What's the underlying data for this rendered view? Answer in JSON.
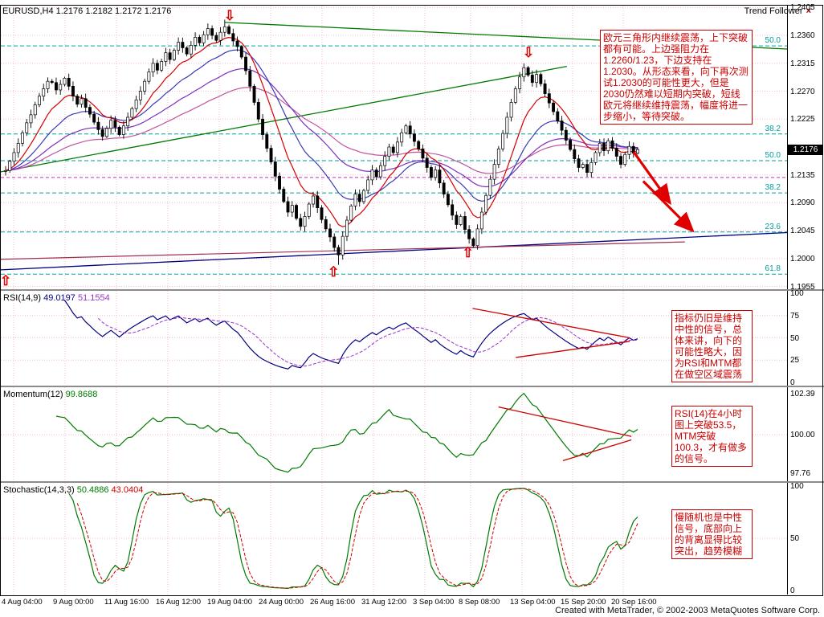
{
  "window": {
    "symbol_label": "EURUSD,H4 1.2176 1.2182 1.2172 1.2176",
    "overlay_title": "Trend Follower",
    "close_icon": "×",
    "footer": "Created with MetaTrader, © 2002-2003 MetaQuotes Software Corp."
  },
  "price_axis": {
    "labels": [
      "1.2405",
      "1.2360",
      "1.2315",
      "1.2270",
      "1.2225",
      "1.2135",
      "1.2090",
      "1.2045",
      "1.2000",
      "1.1955"
    ],
    "current": "1.2176"
  },
  "panels": {
    "rsi": {
      "name": "RSI(14,9)",
      "v1": "49.0197",
      "v2": "51.1554",
      "scale": [
        "100",
        "75",
        "50",
        "25",
        "0"
      ]
    },
    "momentum": {
      "name": "Momentum(12)",
      "v1": "99.8688",
      "scale": [
        "102.39",
        "100.00",
        "97.76"
      ]
    },
    "stochastic": {
      "name": "Stochastic(14,3,3)",
      "v1": "50.4886",
      "v2": "43.0404",
      "scale": [
        "100",
        "50",
        "0"
      ]
    }
  },
  "annotations": {
    "main": "欧元三角形内继续震荡，上下突破都有可能。上边强阻力在1.2260/1.23，下边支持在1.2030。从形态来看，向下再次测试1.2030的可能性更大，但是2030仍然难以短期内突破，短线欧元将继续维持震荡，幅度将进一步缩小，等待突破。",
    "rsi": "指标仍旧是维持中性的信号，总体来讲，向下的可能性略大，因为RSI和MTM都在做空区域震荡",
    "momentum": "RSI(14)在4小时图上突破53.5，MTM突破100.3，才有做多的信号。",
    "stochastic": "慢随机也是中性信号，底部向上的背离显得比较突出，趋势模糊"
  },
  "chart_data": {
    "type": "candlestick",
    "symbol": "EURUSD",
    "timeframe": "H4",
    "price_range": [
      1.1952,
      1.2408
    ],
    "closes": [
      1.2142,
      1.2157,
      1.2171,
      1.2186,
      1.2203,
      1.2219,
      1.2232,
      1.2248,
      1.2262,
      1.2274,
      1.2286,
      1.2284,
      1.2272,
      1.2281,
      1.2291,
      1.2278,
      1.2262,
      1.2249,
      1.2258,
      1.2244,
      1.2233,
      1.222,
      1.2208,
      1.2197,
      1.221,
      1.2223,
      1.2212,
      1.22,
      1.2214,
      1.2228,
      1.2242,
      1.2256,
      1.227,
      1.2286,
      1.2301,
      1.2315,
      1.2304,
      1.2318,
      1.2332,
      1.2321,
      1.2336,
      1.2349,
      1.234,
      1.233,
      1.2344,
      1.2357,
      1.2348,
      1.2361,
      1.2371,
      1.236,
      1.2352,
      1.2365,
      1.2374,
      1.2363,
      1.2351,
      1.2342,
      1.2325,
      1.2303,
      1.2278,
      1.2252,
      1.2225,
      1.22,
      1.2178,
      1.2156,
      1.2133,
      1.2112,
      1.2092,
      1.2075,
      1.2086,
      1.2065,
      1.2052,
      1.2068,
      1.2088,
      1.2101,
      1.2082,
      1.2063,
      1.2048,
      1.2035,
      1.2018,
      1.2006,
      1.2036,
      1.2062,
      1.2085,
      1.2104,
      1.2092,
      1.211,
      1.2127,
      1.2143,
      1.2132,
      1.215,
      1.2165,
      1.218,
      1.2171,
      1.2188,
      1.2203,
      1.2214,
      1.2201,
      1.2189,
      1.2177,
      1.2162,
      1.2147,
      1.2131,
      1.2143,
      1.2122,
      1.2104,
      1.2087,
      1.207,
      1.2055,
      1.2068,
      1.2047,
      1.2032,
      1.2021,
      1.2048,
      1.2075,
      1.2102,
      1.2128,
      1.2152,
      1.2177,
      1.2202,
      1.2228,
      1.2252,
      1.2274,
      1.2293,
      1.2308,
      1.2296,
      1.2284,
      1.2297,
      1.2282,
      1.2266,
      1.2251,
      1.2237,
      1.2222,
      1.2207,
      1.2191,
      1.2176,
      1.2161,
      1.2147,
      1.2152,
      1.2139,
      1.2155,
      1.2171,
      1.2186,
      1.2174,
      1.219,
      1.2178,
      1.2165,
      1.2152,
      1.2168,
      1.2181,
      1.217,
      1.2176
    ],
    "time_labels": [
      "4 Aug 04:00",
      "9 Aug 00:00",
      "11 Aug 16:00",
      "16 Aug 12:00",
      "19 Aug 04:00",
      "24 Aug 00:00",
      "26 Aug 16:00",
      "31 Aug 12:00",
      "3 Sep 04:00",
      "8 Sep 08:00",
      "13 Sep 04:00",
      "15 Sep 20:00",
      "20 Sep 16:00"
    ],
    "overlays": [
      {
        "period": 65,
        "color": "#c2559f"
      },
      {
        "period": 40,
        "color": "#7b2fbe"
      },
      {
        "period": 21,
        "color": "#3a3ab8"
      },
      {
        "period": 10,
        "color": "#d40000"
      }
    ],
    "fib_levels": [
      {
        "label": "50.0",
        "price": 1.2343
      },
      {
        "label": "38.2",
        "price": 1.2201
      },
      {
        "label": "50.0",
        "price": 1.2158
      },
      {
        "label": "38.2",
        "price": 1.2106
      },
      {
        "label": "23.6",
        "price": 1.2043
      },
      {
        "label": "61.8",
        "price": 1.1975
      }
    ],
    "trendlines": [
      {
        "x1": 0.0,
        "p1": 1.214,
        "x2": 0.72,
        "p2": 1.231,
        "color": "#007a00",
        "w": 1.3
      },
      {
        "x1": 0.285,
        "p1": 1.2381,
        "x2": 1.0,
        "p2": 1.2338,
        "color": "#007a00",
        "w": 1.3
      },
      {
        "x1": 0.0,
        "p1": 1.1982,
        "x2": 1.0,
        "p2": 1.2042,
        "color": "#000080",
        "w": 1.3
      },
      {
        "x1": 0.0,
        "p1": 1.1999,
        "x2": 0.87,
        "p2": 1.2027,
        "color": "#a03050",
        "w": 1.2
      }
    ],
    "hlines": [
      {
        "price": 1.2131,
        "color": "#c030c0",
        "dash": "4,3"
      }
    ],
    "red_arrows": [
      {
        "x1": 0.805,
        "p1": 1.2172,
        "x2": 0.851,
        "p2": 1.209
      },
      {
        "x1": 0.817,
        "p1": 1.2125,
        "x2": 0.88,
        "p2": 1.2045
      }
    ],
    "symbol_arrows": [
      {
        "dir": "down",
        "x": 0.292,
        "price": 1.239
      },
      {
        "dir": "down",
        "x": 0.672,
        "price": 1.233
      },
      {
        "dir": "up",
        "x": 0.006,
        "price": 1.1962
      },
      {
        "dir": "up",
        "x": 0.424,
        "price": 1.1976
      },
      {
        "dir": "up",
        "x": 0.595,
        "price": 1.2008
      }
    ],
    "indicator_lines": {
      "rsi": [
        [
          0.6,
          83,
          0.8,
          50
        ],
        [
          0.655,
          28,
          0.8,
          46
        ]
      ],
      "momentum": [
        [
          0.633,
          101.6,
          0.802,
          99.9
        ],
        [
          0.715,
          98.5,
          0.802,
          99.7
        ]
      ]
    },
    "indicators": [
      {
        "name": "RSI",
        "params": [
          14,
          9
        ],
        "values": [
          49.0197,
          51.1554
        ]
      },
      {
        "name": "Momentum",
        "params": [
          12
        ],
        "values": [
          99.8688
        ]
      },
      {
        "name": "Stochastic",
        "params": [
          14,
          3,
          3
        ],
        "values": [
          50.4886,
          43.0404
        ]
      }
    ]
  }
}
